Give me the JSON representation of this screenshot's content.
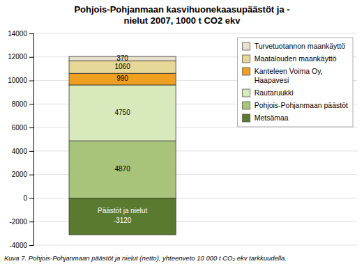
{
  "chart_data": {
    "type": "bar",
    "stacked": true,
    "title": "Pohjois-Pohjanmaan kasvihuonekaasupäästöt ja -\nnielut 2007, 1000 t CO2 ekv",
    "caption": "Kuva 7. Pohjois-Pohjanmaan päästöt ja nielut (netto), yhteenveto 10 000 t CO₂ ekv tarkkuudella.",
    "annotations": [
      "Päästöt ja nielut"
    ],
    "categories": [
      null
    ],
    "series": [
      {
        "name": "Metsämaa",
        "color": "#5a7a30",
        "values": [
          -3120
        ]
      },
      {
        "name": "Pohjois-Pohjanmaan päästöt",
        "color": "#a8c47a",
        "values": [
          4870
        ]
      },
      {
        "name": "Rautaruukki",
        "color": "#d8eabc",
        "values": [
          4750
        ]
      },
      {
        "name": "Kanteleen Voima Oy,\nHaapavesi",
        "color": "#f0a020",
        "values": [
          990
        ]
      },
      {
        "name": "Maatalouden maankäyttö",
        "color": "#e8d898",
        "values": [
          1060
        ]
      },
      {
        "name": "Turvetuotannon maankäyttö",
        "color": "#e8e0cc",
        "values": [
          370
        ]
      }
    ],
    "ylim": [
      -4000,
      14000
    ],
    "yticks": [
      -4000,
      -2000,
      0,
      2000,
      4000,
      6000,
      8000,
      10000,
      12000,
      14000
    ],
    "grid": true,
    "legend": "upper right",
    "data_labels": true
  }
}
